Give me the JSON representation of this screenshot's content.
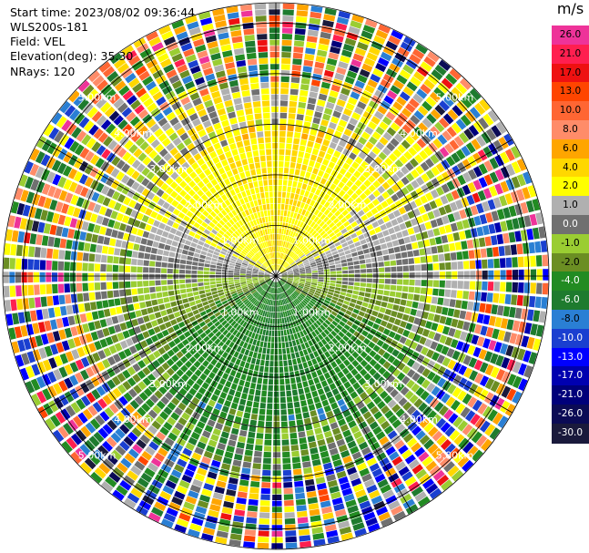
{
  "header": {
    "start_time": "Start time: 2023/08/02 09:36:44",
    "instrument": "WLS200s-181",
    "field": "Field: VEL",
    "elevation": "Elevation(deg): 35.30",
    "nrays": "NRays: 120"
  },
  "colorbar": {
    "unit": "m/s",
    "ticks": [
      "26.0",
      "21.0",
      "17.0",
      "13.0",
      "10.0",
      "8.0",
      "6.0",
      "4.0",
      "2.0",
      "1.0",
      "0.0",
      "-1.0",
      "-2.0",
      "-4.0",
      "-6.0",
      "-8.0",
      "-10.0",
      "-13.0",
      "-17.0",
      "-21.0",
      "-26.0",
      "-30.0"
    ],
    "colors": [
      "#ee3399",
      "#ff1f4f",
      "#ee1111",
      "#ff4500",
      "#ff6633",
      "#ff8c69",
      "#ffa500",
      "#ffd700",
      "#ffff00",
      "#b0b0b0",
      "#707070",
      "#9acd32",
      "#6b8e23",
      "#228b22",
      "#1e7b2e",
      "#2a7fd4",
      "#1a3fd0",
      "#0000ff",
      "#0000b0",
      "#00007a",
      "#0b0b55",
      "#1a1a3c"
    ]
  },
  "chart_data": {
    "type": "heatmap",
    "projection": "polar PPI (plan position indicator)",
    "field": "VEL",
    "units": "m/s",
    "nrays": 120,
    "elevation_deg": 35.3,
    "range_rings_km": [
      "1.00km",
      "2.00km",
      "3.00km",
      "4.00km",
      "5.00km"
    ],
    "max_range_km": 5.4,
    "spokes_deg": [
      0,
      30,
      60,
      90,
      120,
      150,
      180,
      210,
      240,
      270,
      300,
      330
    ],
    "colorscale_m_s": [
      26.0,
      21.0,
      17.0,
      13.0,
      10.0,
      8.0,
      6.0,
      4.0,
      2.0,
      1.0,
      0.0,
      -1.0,
      -2.0,
      -4.0,
      -6.0,
      -8.0,
      -10.0,
      -13.0,
      -17.0,
      -21.0,
      -26.0,
      -30.0
    ],
    "pattern": {
      "north_near_range_m_s": 4.0,
      "south_near_range_m_s": -4.0,
      "east_west_near_range_m_s": 0.0,
      "outer_ranges": "noisy, mixed values across the full scale"
    }
  }
}
